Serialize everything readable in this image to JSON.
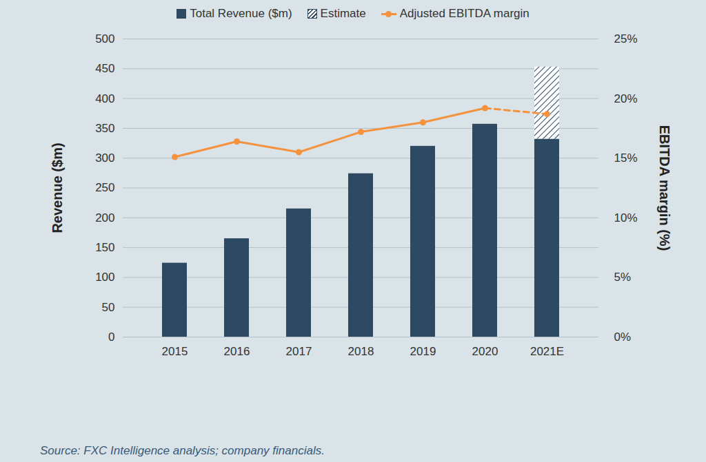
{
  "chart_data": {
    "type": "bar",
    "stacked": true,
    "grid": true,
    "legend": "top",
    "ylabel": "Revenue ($m)",
    "y2label": "EBITDA margin (%)",
    "source": "Source: FXC Intelligence analysis; company financials.",
    "categories": [
      "2015",
      "2016",
      "2017",
      "2018",
      "2019",
      "2020",
      "2021E"
    ],
    "series": [
      {
        "name": "Total Revenue ($m)",
        "type": "bar",
        "color": "#2e4a62",
        "values": [
          124,
          165,
          215,
          274,
          320,
          357,
          332
        ]
      },
      {
        "name": "Estimate",
        "type": "bar",
        "color": "#2e4a62",
        "values": [
          null,
          null,
          null,
          null,
          null,
          null,
          121
        ]
      },
      {
        "name": "Adjusted EBITDA margin",
        "type": "line",
        "axis": "y2",
        "color": "#f5923e",
        "marker": "circle",
        "line_style": "solid",
        "values": [
          15.1,
          16.4,
          15.5,
          17.2,
          18.0,
          19.2,
          18.7
        ]
      }
    ],
    "ylim": [
      0,
      500
    ],
    "yticks": [
      0,
      50,
      100,
      150,
      200,
      250,
      300,
      350,
      400,
      450,
      500
    ],
    "y2lim": [
      0,
      25
    ],
    "y2ticks": [
      {
        "value": 0,
        "label": "0%"
      },
      {
        "value": 5,
        "label": "5%"
      },
      {
        "value": 10,
        "label": "10%"
      },
      {
        "value": 15,
        "label": "15%"
      },
      {
        "value": 20,
        "label": "20%"
      },
      {
        "value": 25,
        "label": "25%"
      }
    ]
  }
}
